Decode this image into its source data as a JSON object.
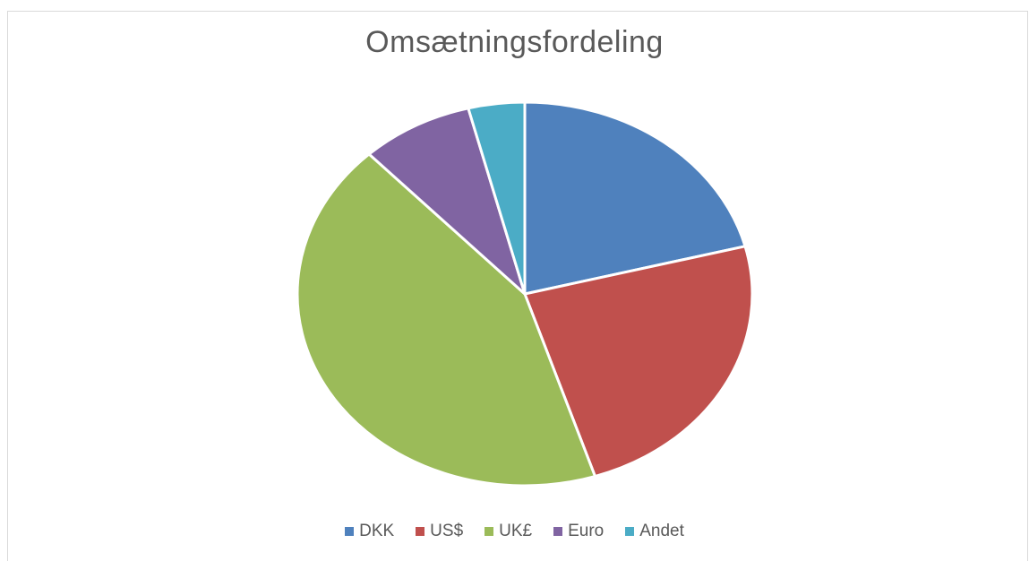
{
  "chart_data": {
    "type": "pie",
    "title": "Omsætningsfordeling",
    "legend_position": "bottom",
    "slices": [
      {
        "label": "DKK",
        "value": 21,
        "color": "#4f81bd"
      },
      {
        "label": "US$",
        "value": 24,
        "color": "#c0504d"
      },
      {
        "label": "UK£",
        "value": 43,
        "color": "#9bbb59"
      },
      {
        "label": "Euro",
        "value": 8,
        "color": "#8064a2"
      },
      {
        "label": "Andet",
        "value": 4,
        "color": "#4bacc6"
      }
    ]
  }
}
